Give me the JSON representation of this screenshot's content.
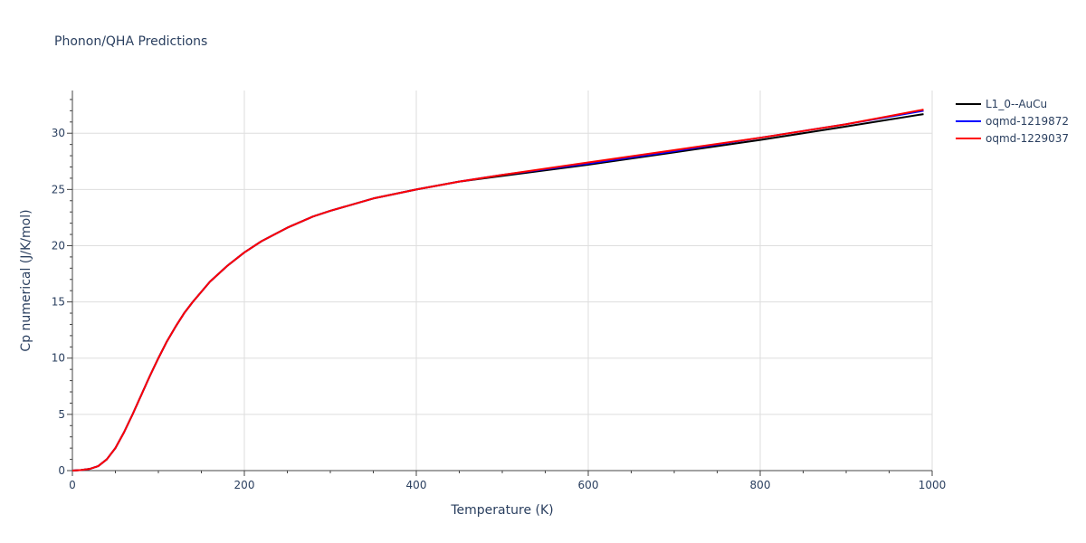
{
  "chart_data": {
    "type": "line",
    "title": "Phonon/QHA Predictions",
    "xlabel": "Temperature (K)",
    "ylabel": "Cp numerical (J/K/mol)",
    "xlim": [
      0,
      1000
    ],
    "ylim": [
      0,
      33.8
    ],
    "xticks": [
      0,
      200,
      400,
      600,
      800,
      1000
    ],
    "yticks": [
      0,
      5,
      10,
      15,
      20,
      25,
      30
    ],
    "grid": true,
    "legend_position": "top-right",
    "series": [
      {
        "name": "L1_0--AuCu",
        "color": "#000000",
        "x": [
          0,
          10,
          20,
          30,
          40,
          50,
          60,
          70,
          80,
          90,
          100,
          110,
          120,
          130,
          140,
          160,
          180,
          200,
          220,
          250,
          280,
          300,
          350,
          400,
          450,
          500,
          600,
          700,
          800,
          900,
          990
        ],
        "y": [
          0,
          0.05,
          0.15,
          0.4,
          1.0,
          2.0,
          3.4,
          5.0,
          6.7,
          8.4,
          10.0,
          11.5,
          12.8,
          14.0,
          15.0,
          16.8,
          18.2,
          19.4,
          20.4,
          21.6,
          22.6,
          23.1,
          24.2,
          25.0,
          25.7,
          26.2,
          27.2,
          28.3,
          29.4,
          30.6,
          31.7
        ]
      },
      {
        "name": "oqmd-1219872",
        "color": "#0000ff",
        "x": [
          0,
          10,
          20,
          30,
          40,
          50,
          60,
          70,
          80,
          90,
          100,
          110,
          120,
          130,
          140,
          160,
          180,
          200,
          220,
          250,
          280,
          300,
          350,
          400,
          450,
          500,
          600,
          700,
          800,
          900,
          990
        ],
        "y": [
          0,
          0.05,
          0.15,
          0.4,
          1.0,
          2.0,
          3.4,
          5.0,
          6.7,
          8.4,
          10.0,
          11.5,
          12.8,
          14.0,
          15.0,
          16.8,
          18.2,
          19.4,
          20.4,
          21.6,
          22.6,
          23.1,
          24.2,
          25.0,
          25.7,
          26.3,
          27.3,
          28.4,
          29.6,
          30.8,
          32.0
        ]
      },
      {
        "name": "oqmd-1229037",
        "color": "#ff0000",
        "x": [
          0,
          10,
          20,
          30,
          40,
          50,
          60,
          70,
          80,
          90,
          100,
          110,
          120,
          130,
          140,
          160,
          180,
          200,
          220,
          250,
          280,
          300,
          350,
          400,
          450,
          500,
          600,
          700,
          800,
          900,
          990
        ],
        "y": [
          0,
          0.05,
          0.15,
          0.4,
          1.0,
          2.0,
          3.4,
          5.0,
          6.7,
          8.4,
          10.0,
          11.5,
          12.8,
          14.0,
          15.0,
          16.8,
          18.2,
          19.4,
          20.4,
          21.6,
          22.6,
          23.1,
          24.2,
          25.0,
          25.7,
          26.3,
          27.4,
          28.5,
          29.6,
          30.8,
          32.1
        ]
      }
    ]
  }
}
